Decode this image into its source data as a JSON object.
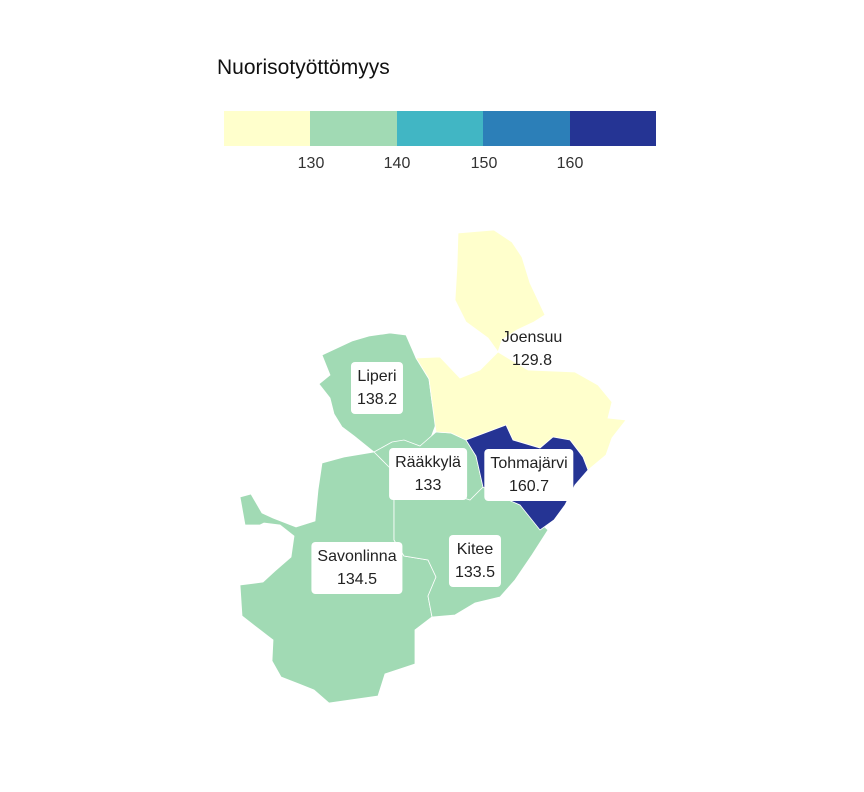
{
  "legend": {
    "title": "Nuorisotyöttömyys",
    "colors": [
      "#ffffcc",
      "#a1dab4",
      "#41b6c4",
      "#2c7fb8",
      "#253494"
    ],
    "ticks": [
      "130",
      "140",
      "150",
      "160"
    ]
  },
  "regions": [
    {
      "name": "Joensuu",
      "value": "129.8",
      "color": "#ffffcc"
    },
    {
      "name": "Liperi",
      "value": "138.2",
      "color": "#a1dab4"
    },
    {
      "name": "Rääkkylä",
      "value": "133",
      "color": "#a1dab4"
    },
    {
      "name": "Tohmajärvi",
      "value": "160.7",
      "color": "#253494"
    },
    {
      "name": "Savonlinna",
      "value": "134.5",
      "color": "#a1dab4"
    },
    {
      "name": "Kitee",
      "value": "133.5",
      "color": "#a1dab4"
    }
  ]
}
